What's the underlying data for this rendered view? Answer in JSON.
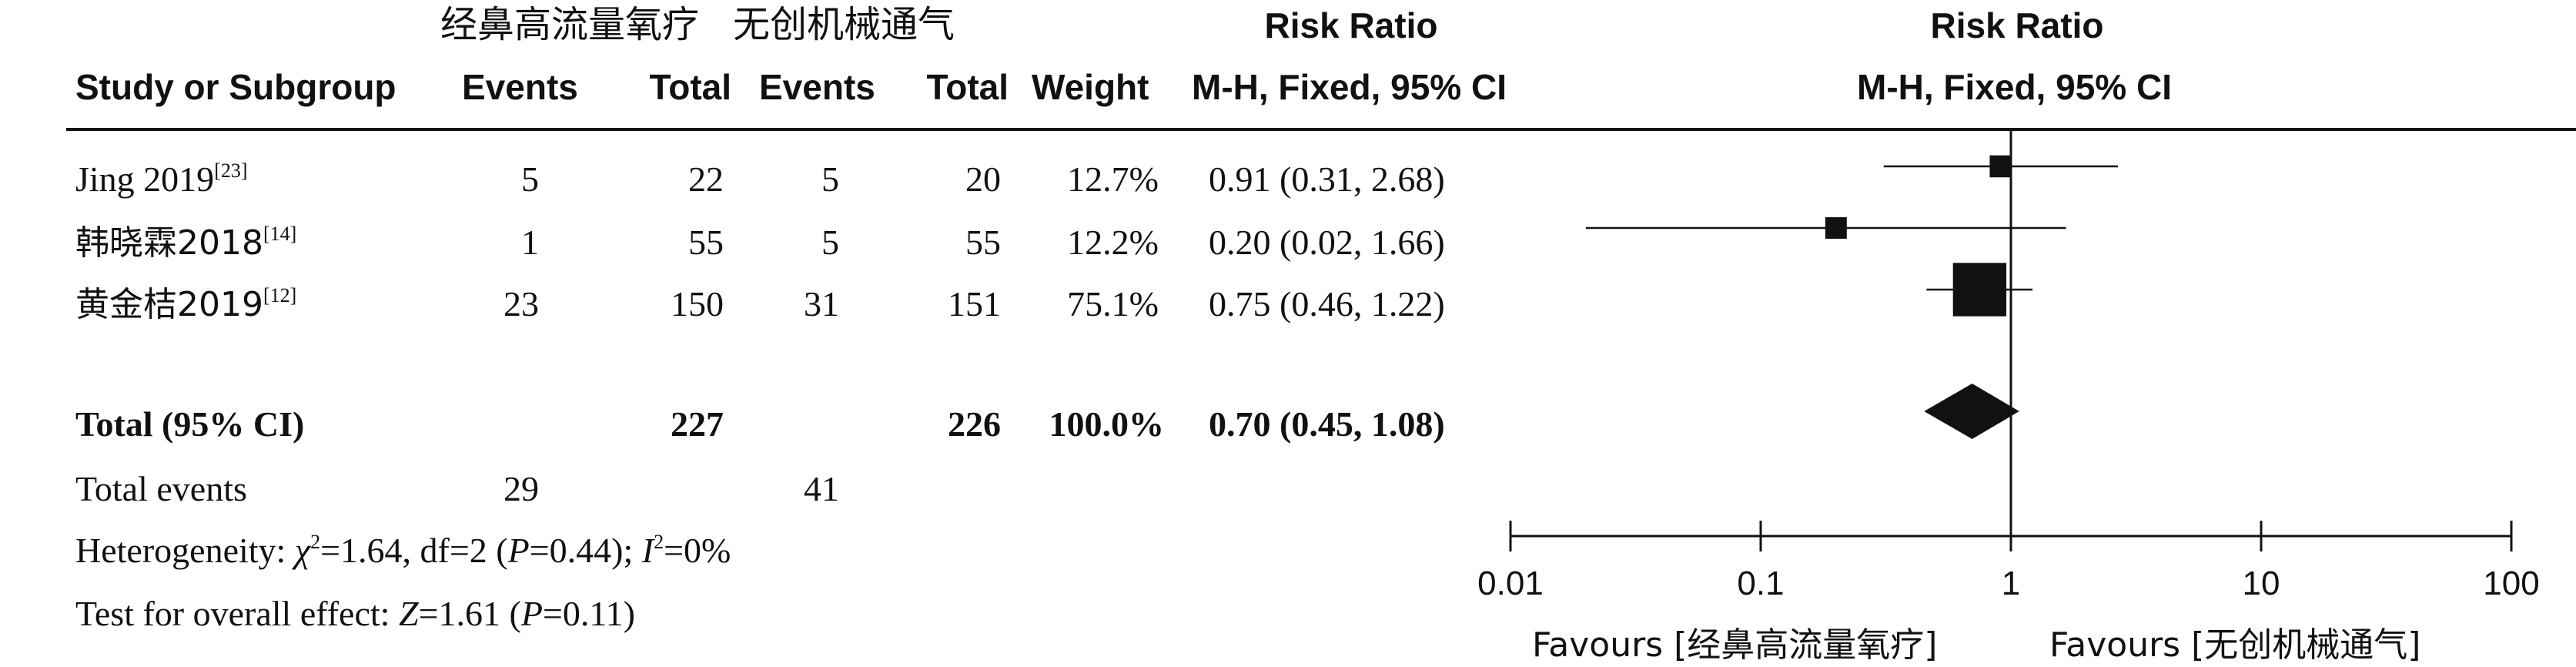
{
  "header": {
    "group1": "经鼻高流量氧疗",
    "group2": "无创机械通气",
    "rr_title": "Risk Ratio",
    "rr_plot_title": "Risk Ratio",
    "study": "Study or Subgroup",
    "events1": "Events",
    "total1": "Total",
    "events2": "Events",
    "total2": "Total",
    "weight": "Weight",
    "method": "M-H, Fixed, 95% CI",
    "method_plot": "M-H, Fixed, 95% CI"
  },
  "studies": [
    {
      "name": "Jing 2019",
      "ref": "[23]",
      "events1": "5",
      "total1": "22",
      "events2": "5",
      "total2": "20",
      "weight": "12.7%",
      "ci": "0.91 (0.31, 2.68)"
    },
    {
      "name": "韩晓霖2018",
      "ref": "[14]",
      "events1": "1",
      "total1": "55",
      "events2": "5",
      "total2": "55",
      "weight": "12.2%",
      "ci": "0.20 (0.02, 1.66)"
    },
    {
      "name": "黄金桔2019",
      "ref": "[12]",
      "events1": "23",
      "total1": "150",
      "events2": "31",
      "total2": "151",
      "weight": "75.1%",
      "ci": "0.75 (0.46, 1.22)"
    }
  ],
  "total": {
    "label": "Total (95% CI)",
    "total1": "227",
    "total2": "226",
    "weight": "100.0%",
    "ci": "0.70 (0.45, 1.08)"
  },
  "total_events": {
    "label": "Total events",
    "events1": "29",
    "events2": "41"
  },
  "heterogeneity": {
    "prefix": "Heterogeneity: ",
    "chi": "χ",
    "chi_sup": "2",
    "chi_val": "=1.64, df=2 (",
    "p1": "P",
    "p1_val": "=0.44); ",
    "i": "I",
    "i_sup": "2",
    "i_val": "=0%"
  },
  "overall": {
    "prefix": "Test for overall effect: ",
    "z": "Z",
    "z_val": "=1.61 (",
    "p": "P",
    "p_val": "=0.11)"
  },
  "chart_data": {
    "type": "forest",
    "scale": "log",
    "xlim": [
      0.01,
      100
    ],
    "ticks": [
      {
        "value": 0.01,
        "label": "0.01"
      },
      {
        "value": 0.1,
        "label": "0.1"
      },
      {
        "value": 1,
        "label": "1"
      },
      {
        "value": 10,
        "label": "10"
      },
      {
        "value": 100,
        "label": "100"
      }
    ],
    "reference_line": 1,
    "studies": [
      {
        "rr": 0.91,
        "lower": 0.31,
        "upper": 2.68,
        "weight": 12.7
      },
      {
        "rr": 0.2,
        "lower": 0.02,
        "upper": 1.66,
        "weight": 12.2
      },
      {
        "rr": 0.75,
        "lower": 0.46,
        "upper": 1.22,
        "weight": 75.1
      }
    ],
    "pooled": {
      "rr": 0.7,
      "lower": 0.45,
      "upper": 1.08
    },
    "favours_left": "Favours [经鼻高流量氧疗]",
    "favours_right": "Favours [无创机械通气]"
  }
}
